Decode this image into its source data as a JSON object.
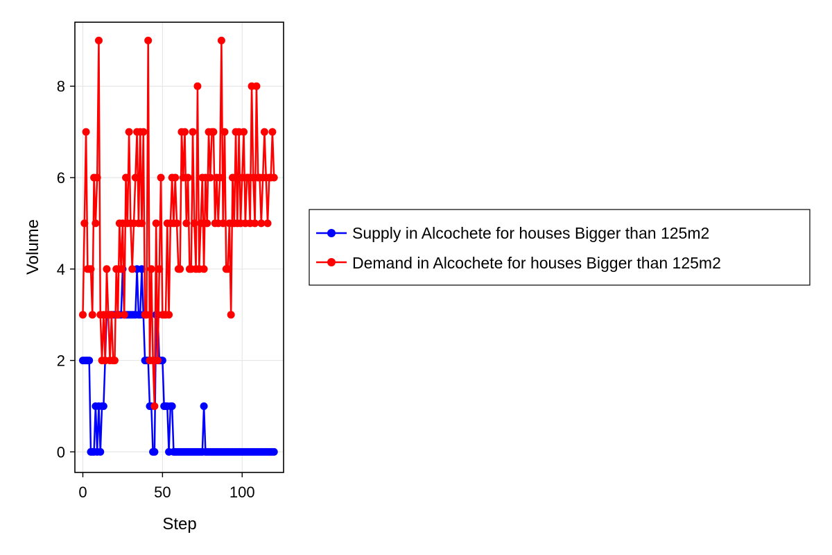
{
  "chart_data": {
    "type": "line",
    "xlabel": "Step",
    "ylabel": "Volume",
    "xlim": [
      -5,
      126
    ],
    "ylim": [
      -0.45,
      9.4
    ],
    "xticks": [
      0,
      50,
      100
    ],
    "yticks": [
      0,
      2,
      4,
      6,
      8
    ],
    "grid": true,
    "legend_position": "right",
    "series": [
      {
        "name": "Supply in Alcochete for houses Bigger than 125m2",
        "color": "#0000ff",
        "x": [
          0,
          1,
          2,
          3,
          4,
          5,
          6,
          7,
          8,
          9,
          10,
          11,
          12,
          13,
          14,
          15,
          16,
          17,
          18,
          19,
          20,
          21,
          22,
          23,
          24,
          25,
          26,
          27,
          28,
          29,
          30,
          31,
          32,
          33,
          34,
          35,
          36,
          37,
          38,
          39,
          40,
          41,
          42,
          43,
          44,
          45,
          46,
          47,
          48,
          49,
          50,
          51,
          52,
          53,
          54,
          55,
          56,
          57,
          58,
          59,
          60,
          61,
          62,
          63,
          64,
          65,
          66,
          67,
          68,
          69,
          70,
          71,
          72,
          73,
          74,
          75,
          76,
          77,
          78,
          79,
          80,
          81,
          82,
          83,
          84,
          85,
          86,
          87,
          88,
          89,
          90,
          91,
          92,
          93,
          94,
          95,
          96,
          97,
          98,
          99,
          100,
          101,
          102,
          103,
          104,
          105,
          106,
          107,
          108,
          109,
          110,
          111,
          112,
          113,
          114,
          115,
          116,
          117,
          118,
          119,
          120
        ],
        "values": [
          2,
          2,
          2,
          2,
          2,
          0,
          0,
          0,
          1,
          0,
          1,
          0,
          1,
          1,
          2,
          3,
          3,
          3,
          3,
          3,
          3,
          3,
          3,
          3,
          3,
          4,
          3,
          3,
          3,
          3,
          3,
          3,
          3,
          3,
          4,
          3,
          3,
          4,
          3,
          2,
          2,
          2,
          1,
          1,
          0,
          0,
          3,
          3,
          2,
          2,
          2,
          1,
          1,
          1,
          0,
          1,
          1,
          0,
          0,
          0,
          0,
          0,
          0,
          0,
          0,
          0,
          0,
          0,
          0,
          0,
          0,
          0,
          0,
          0,
          0,
          0,
          1,
          0,
          0,
          0,
          0,
          0,
          0,
          0,
          0,
          0,
          0,
          0,
          0,
          0,
          0,
          0,
          0,
          0,
          0,
          0,
          0,
          0,
          0,
          0,
          0,
          0,
          0,
          0,
          0,
          0,
          0,
          0,
          0,
          0,
          0,
          0,
          0,
          0,
          0,
          0,
          0,
          0,
          0,
          0,
          0
        ]
      },
      {
        "name": "Demand in Alcochete for houses Bigger than 125m2",
        "color": "#ff0000",
        "x": [
          0,
          1,
          2,
          3,
          4,
          5,
          6,
          7,
          8,
          9,
          10,
          11,
          12,
          13,
          14,
          15,
          16,
          17,
          18,
          19,
          20,
          21,
          22,
          23,
          24,
          25,
          26,
          27,
          28,
          29,
          30,
          31,
          32,
          33,
          34,
          35,
          36,
          37,
          38,
          39,
          40,
          41,
          42,
          43,
          44,
          45,
          46,
          47,
          48,
          49,
          50,
          51,
          52,
          53,
          54,
          55,
          56,
          57,
          58,
          59,
          60,
          61,
          62,
          63,
          64,
          65,
          66,
          67,
          68,
          69,
          70,
          71,
          72,
          73,
          74,
          75,
          76,
          77,
          78,
          79,
          80,
          81,
          82,
          83,
          84,
          85,
          86,
          87,
          88,
          89,
          90,
          91,
          92,
          93,
          94,
          95,
          96,
          97,
          98,
          99,
          100,
          101,
          102,
          103,
          104,
          105,
          106,
          107,
          108,
          109,
          110,
          111,
          112,
          113,
          114,
          115,
          116,
          117,
          118,
          119,
          120
        ],
        "values": [
          3,
          5,
          7,
          4,
          4,
          4,
          3,
          6,
          5,
          6,
          9,
          3,
          2,
          3,
          2,
          4,
          3,
          2,
          3,
          2,
          2,
          4,
          3,
          5,
          4,
          5,
          3,
          6,
          5,
          7,
          5,
          4,
          5,
          6,
          7,
          5,
          7,
          5,
          7,
          3,
          3,
          9,
          2,
          4,
          2,
          1,
          5,
          2,
          4,
          6,
          3,
          3,
          3,
          5,
          3,
          5,
          6,
          5,
          6,
          5,
          4,
          4,
          7,
          6,
          7,
          5,
          6,
          4,
          4,
          7,
          5,
          4,
          8,
          4,
          5,
          6,
          4,
          6,
          5,
          7,
          6,
          7,
          7,
          5,
          6,
          5,
          6,
          9,
          5,
          7,
          4,
          4,
          5,
          3,
          6,
          5,
          7,
          5,
          7,
          5,
          6,
          7,
          5,
          6,
          6,
          5,
          8,
          6,
          5,
          8,
          6,
          6,
          5,
          6,
          7,
          6,
          5,
          6,
          6,
          7,
          6
        ]
      }
    ]
  }
}
